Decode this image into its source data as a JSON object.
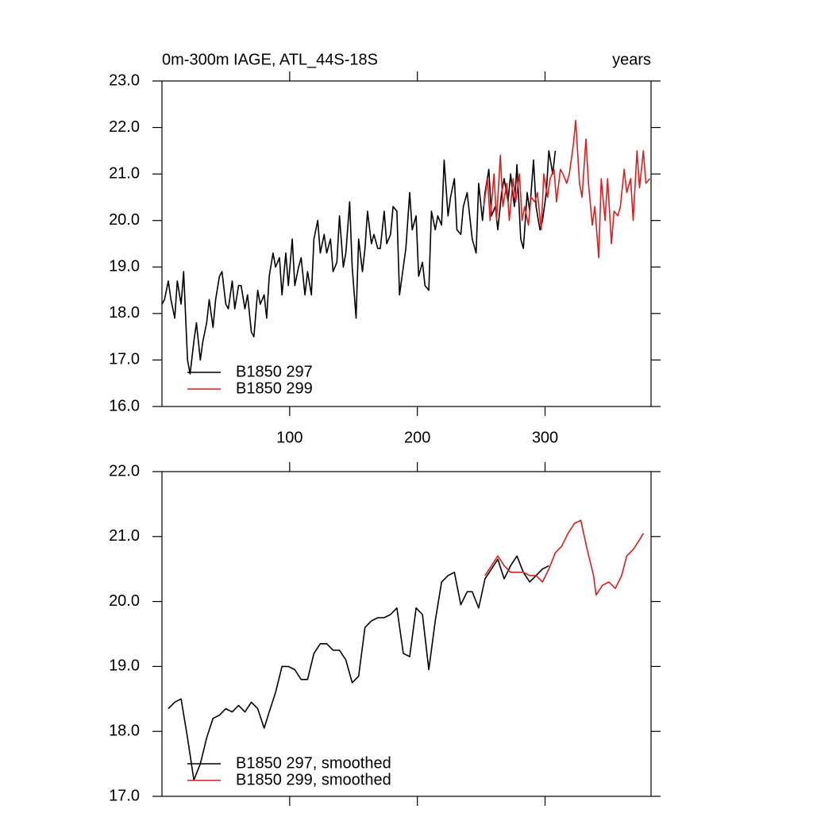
{
  "chart_data": [
    {
      "type": "line",
      "title": "0m-300m IAGE, ATL_44S-18S",
      "right_title": "years",
      "xlim": [
        0,
        383
      ],
      "xticks": [
        100,
        200,
        300
      ],
      "xtick_labels": true,
      "ylim": [
        16,
        23
      ],
      "yticks": [
        {
          "value": 16,
          "label": "16.0"
        },
        {
          "value": 17,
          "label": "17.0"
        },
        {
          "value": 18,
          "label": "18.0"
        },
        {
          "value": 19,
          "label": "19.0"
        },
        {
          "value": 20,
          "label": "20.0"
        },
        {
          "value": 21,
          "label": "21.0"
        },
        {
          "value": 22,
          "label": "22.0"
        },
        {
          "value": 23,
          "label": "23.0"
        }
      ],
      "series": [
        {
          "name": "B1850 297",
          "color": "#000000",
          "x": [
            0,
            2,
            5,
            7,
            10,
            12,
            15,
            17,
            20,
            22,
            25,
            27,
            30,
            32,
            35,
            37,
            40,
            42,
            45,
            47,
            50,
            52,
            55,
            57,
            60,
            62,
            65,
            67,
            70,
            72,
            75,
            77,
            80,
            82,
            84,
            87,
            89,
            92,
            94,
            97,
            99,
            102,
            104,
            107,
            109,
            112,
            114,
            117,
            119,
            122,
            124,
            127,
            129,
            132,
            134,
            137,
            139,
            142,
            144,
            147,
            149,
            152,
            154,
            157,
            159,
            161,
            164,
            166,
            169,
            171,
            174,
            176,
            179,
            181,
            184,
            186,
            189,
            191,
            194,
            196,
            199,
            201,
            204,
            206,
            209,
            211,
            214,
            216,
            219,
            221,
            224,
            226,
            229,
            231,
            234,
            236,
            239,
            241,
            243,
            246,
            248,
            251,
            253,
            256,
            258,
            261,
            263,
            266,
            268,
            271,
            273,
            276,
            278,
            281,
            283,
            286,
            288,
            291,
            293,
            296,
            298,
            301,
            303,
            306,
            308
          ],
          "values": [
            18.2,
            18.3,
            18.7,
            18.3,
            17.9,
            18.7,
            18.2,
            18.9,
            17.0,
            16.7,
            17.4,
            17.8,
            17.0,
            17.4,
            17.8,
            18.3,
            17.7,
            18.3,
            18.8,
            18.9,
            18.2,
            18.1,
            18.7,
            18.1,
            18.6,
            18.6,
            18.1,
            18.4,
            17.6,
            17.5,
            18.5,
            18.2,
            18.4,
            17.9,
            18.8,
            19.3,
            19.0,
            19.2,
            18.4,
            19.3,
            18.6,
            19.6,
            18.6,
            19.0,
            19.2,
            18.4,
            18.9,
            18.4,
            19.6,
            20.0,
            19.3,
            19.7,
            19.3,
            19.6,
            18.9,
            19.1,
            20.1,
            19.0,
            19.3,
            20.4,
            19.0,
            17.9,
            19.6,
            18.9,
            19.4,
            20.2,
            19.5,
            19.7,
            19.4,
            19.4,
            20.2,
            19.5,
            19.7,
            20.3,
            20.2,
            18.4,
            19.0,
            19.4,
            20.6,
            19.8,
            20.1,
            18.8,
            19.1,
            18.6,
            18.5,
            20.2,
            19.8,
            20.1,
            19.9,
            21.3,
            20.1,
            20.5,
            20.9,
            19.8,
            19.7,
            20.3,
            20.6,
            20.1,
            19.6,
            19.3,
            20.8,
            20.0,
            20.6,
            21.1,
            20.1,
            20.3,
            19.8,
            20.6,
            20.9,
            20.4,
            21.0,
            20.3,
            21.2,
            19.6,
            19.4,
            20.6,
            20.2,
            21.3,
            20.3,
            19.8,
            20.0,
            20.6,
            21.5,
            21.0,
            21.5
          ]
        },
        {
          "name": "B1850 299",
          "color": "#e41a1c",
          "x": [
            252,
            255,
            257,
            260,
            262,
            265,
            267,
            270,
            272,
            275,
            277,
            280,
            282,
            284,
            287,
            289,
            292,
            294,
            297,
            299,
            302,
            304,
            307,
            309,
            312,
            314,
            317,
            319,
            322,
            324,
            327,
            329,
            332,
            334,
            337,
            339,
            342,
            344,
            347,
            349,
            352,
            354,
            357,
            359,
            362,
            364,
            367,
            369,
            372,
            374,
            377,
            379,
            382
          ],
          "values": [
            20.3,
            20.9,
            20.0,
            21.0,
            20.0,
            21.4,
            20.3,
            20.8,
            20.0,
            20.9,
            20.4,
            21.0,
            20.0,
            20.3,
            19.9,
            20.5,
            20.4,
            20.6,
            19.8,
            21.0,
            20.5,
            20.9,
            21.1,
            20.4,
            21.1,
            21.0,
            20.8,
            21.0,
            21.6,
            22.15,
            20.8,
            20.5,
            21.75,
            20.8,
            19.9,
            20.3,
            19.2,
            20.9,
            20.0,
            20.9,
            19.5,
            20.2,
            20.1,
            20.3,
            21.1,
            20.6,
            20.9,
            20.0,
            21.5,
            20.7,
            21.5,
            20.8,
            20.9
          ]
        }
      ]
    },
    {
      "type": "line",
      "xlim": [
        0,
        383
      ],
      "xticks": [
        100,
        200,
        300
      ],
      "xtick_labels": false,
      "ylim": [
        17,
        22
      ],
      "yticks": [
        {
          "value": 17,
          "label": "17.0"
        },
        {
          "value": 18,
          "label": "18.0"
        },
        {
          "value": 19,
          "label": "19.0"
        },
        {
          "value": 20,
          "label": "20.0"
        },
        {
          "value": 21,
          "label": "21.0"
        },
        {
          "value": 22,
          "label": "22.0"
        }
      ],
      "series": [
        {
          "name": "B1850 297, smoothed",
          "color": "#000000",
          "x": [
            5,
            10,
            15,
            20,
            25,
            30,
            35,
            40,
            45,
            50,
            55,
            60,
            65,
            70,
            75,
            80,
            84,
            89,
            94,
            99,
            104,
            109,
            114,
            119,
            124,
            129,
            134,
            139,
            144,
            149,
            154,
            159,
            164,
            169,
            174,
            179,
            184,
            189,
            194,
            199,
            204,
            209,
            214,
            219,
            224,
            229,
            234,
            239,
            243,
            248,
            253,
            258,
            263,
            268,
            273,
            278,
            283,
            288,
            293,
            298,
            303
          ],
          "values": [
            18.35,
            18.45,
            18.5,
            17.9,
            17.25,
            17.5,
            17.9,
            18.2,
            18.25,
            18.35,
            18.3,
            18.4,
            18.3,
            18.45,
            18.35,
            18.05,
            18.3,
            18.6,
            19.0,
            19.0,
            18.95,
            18.8,
            18.8,
            19.2,
            19.35,
            19.35,
            19.25,
            19.25,
            19.1,
            18.75,
            18.85,
            19.6,
            19.7,
            19.75,
            19.75,
            19.8,
            19.9,
            19.2,
            19.15,
            19.9,
            19.8,
            18.95,
            19.7,
            20.3,
            20.4,
            20.45,
            19.95,
            20.15,
            20.15,
            19.9,
            20.35,
            20.5,
            20.65,
            20.35,
            20.55,
            20.7,
            20.45,
            20.3,
            20.4,
            20.5,
            20.55
          ]
        },
        {
          "name": "B1850 299, smoothed",
          "color": "#e41a1c",
          "x": [
            253,
            258,
            263,
            268,
            273,
            278,
            283,
            288,
            293,
            298,
            303,
            308,
            313,
            318,
            323,
            328,
            333,
            338,
            340,
            345,
            350,
            355,
            360,
            364,
            369,
            374,
            377
          ],
          "values": [
            20.4,
            20.55,
            20.7,
            20.55,
            20.45,
            20.45,
            20.45,
            20.4,
            20.4,
            20.3,
            20.5,
            20.75,
            20.85,
            21.05,
            21.2,
            21.25,
            20.8,
            20.4,
            20.1,
            20.25,
            20.3,
            20.2,
            20.4,
            20.7,
            20.8,
            20.95,
            21.05
          ]
        }
      ]
    }
  ]
}
